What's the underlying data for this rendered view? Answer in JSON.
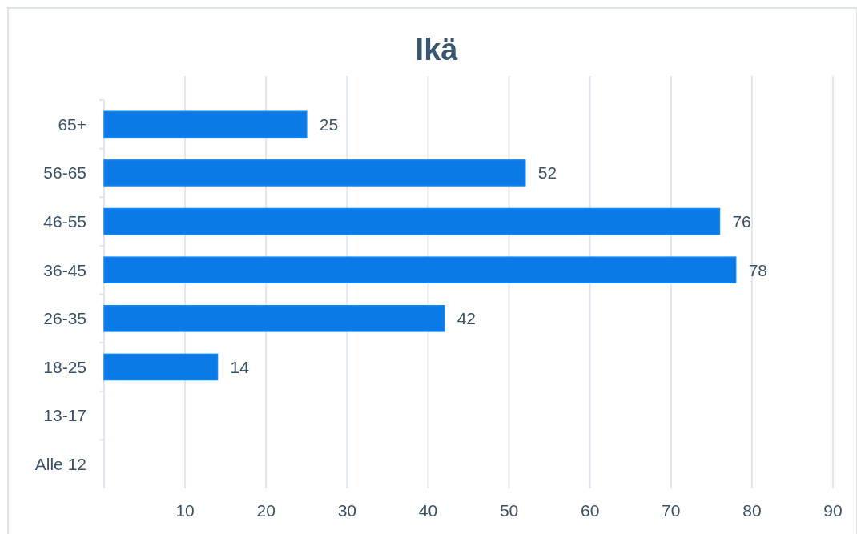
{
  "chart_data": {
    "type": "bar",
    "title": "Ikä",
    "orientation": "horizontal",
    "categories": [
      "65+",
      "56-65",
      "46-55",
      "36-45",
      "26-35",
      "18-25",
      "13-17",
      "Alle 12"
    ],
    "values": [
      25,
      52,
      76,
      78,
      42,
      14,
      0,
      0
    ],
    "value_labels": [
      "25",
      "52",
      "76",
      "78",
      "42",
      "14",
      null,
      null
    ],
    "color": "#0b7ae6",
    "xlim": [
      0,
      90
    ],
    "xticks": [
      10,
      20,
      30,
      40,
      50,
      60,
      70,
      80,
      90
    ],
    "grid": "x"
  }
}
